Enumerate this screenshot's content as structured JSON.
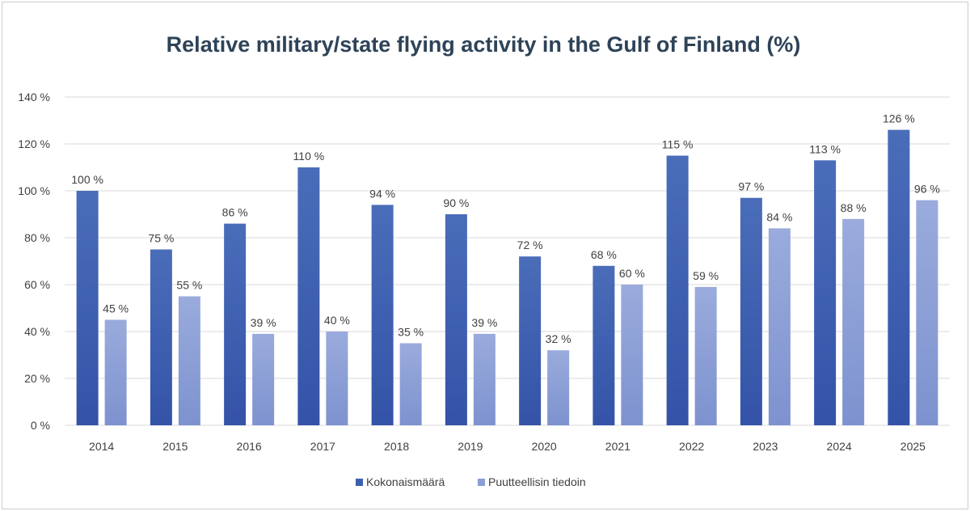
{
  "chart_data": {
    "type": "bar",
    "title": "Relative military/state flying activity in the Gulf of Finland (%)",
    "xlabel": "",
    "ylabel": "",
    "ylim": [
      0,
      140
    ],
    "ytick_step": 20,
    "ytick_suffix": " %",
    "grid": true,
    "legend_position": "bottom",
    "categories": [
      "2014",
      "2015",
      "2016",
      "2017",
      "2018",
      "2019",
      "2020",
      "2021",
      "2022",
      "2023",
      "2024",
      "2025"
    ],
    "series": [
      {
        "name": "Kokonaismäärä",
        "color": "#3d5fae",
        "values": [
          100,
          75,
          86,
          110,
          94,
          90,
          72,
          68,
          115,
          97,
          113,
          126
        ],
        "labels": [
          "100 %",
          "75 %",
          "86 %",
          "110 %",
          "94 %",
          "90 %",
          "72 %",
          "68 %",
          "115 %",
          "97 %",
          "113 %",
          "126 %"
        ]
      },
      {
        "name": "Puutteellisin tiedoin",
        "color": "#8b9fd6",
        "values": [
          45,
          55,
          39,
          40,
          35,
          39,
          32,
          60,
          59,
          84,
          88,
          96
        ],
        "labels": [
          "45 %",
          "55 %",
          "39 %",
          "40 %",
          "35 %",
          "39 %",
          "32 %",
          "60 %",
          "59 %",
          "84 %",
          "88 %",
          "96 %"
        ]
      }
    ]
  }
}
